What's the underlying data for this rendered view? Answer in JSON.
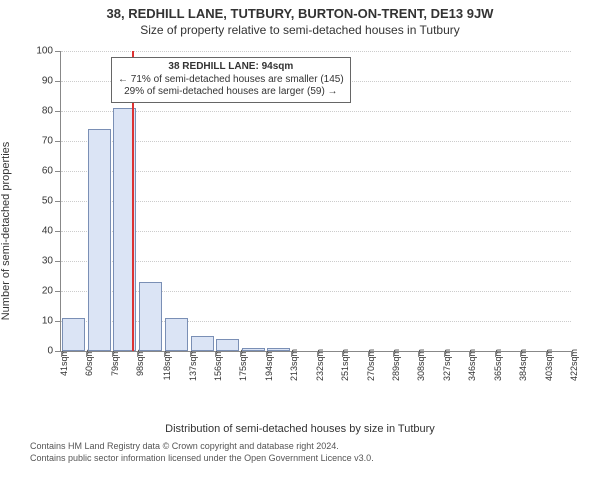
{
  "title": "38, REDHILL LANE, TUTBURY, BURTON-ON-TRENT, DE13 9JW",
  "subtitle": "Size of property relative to semi-detached houses in Tutbury",
  "y_axis_label": "Number of semi-detached properties",
  "x_axis_label": "Distribution of semi-detached houses by size in Tutbury",
  "footer_line1": "Contains HM Land Registry data © Crown copyright and database right 2024.",
  "footer_line2": "Contains public sector information licensed under the Open Government Licence v3.0.",
  "chart": {
    "type": "histogram",
    "ylim": [
      0,
      100
    ],
    "ytick_step": 10,
    "background_color": "#ffffff",
    "grid_color": "#cccccc",
    "axis_color": "#888888",
    "bar_fill": "#dbe4f5",
    "bar_border": "#7a8fb5",
    "bar_width": 0.9,
    "x_categories": [
      "41sqm",
      "60sqm",
      "79sqm",
      "98sqm",
      "118sqm",
      "137sqm",
      "156sqm",
      "175sqm",
      "194sqm",
      "213sqm",
      "232sqm",
      "251sqm",
      "270sqm",
      "289sqm",
      "308sqm",
      "327sqm",
      "346sqm",
      "365sqm",
      "384sqm",
      "403sqm",
      "422sqm"
    ],
    "x_values": [
      41,
      60,
      79,
      98,
      118,
      137,
      156,
      175,
      194,
      213,
      232,
      251,
      270,
      289,
      308,
      327,
      346,
      365,
      384,
      403,
      422
    ],
    "bars": [
      {
        "x": 50.5,
        "y": 11
      },
      {
        "x": 69.5,
        "y": 74
      },
      {
        "x": 88.5,
        "y": 81
      },
      {
        "x": 108,
        "y": 23
      },
      {
        "x": 127.5,
        "y": 11
      },
      {
        "x": 146.5,
        "y": 5
      },
      {
        "x": 165.5,
        "y": 4
      },
      {
        "x": 184.5,
        "y": 1
      },
      {
        "x": 203.5,
        "y": 1
      }
    ],
    "reference_line": {
      "x": 94,
      "color": "#d33"
    },
    "annotation": {
      "line1": "38 REDHILL LANE: 94sqm",
      "line2": "← 71% of semi-detached houses are smaller (145)",
      "line3": "29% of semi-detached houses are larger (59) →",
      "box_border": "#666666",
      "box_bg": "#ffffff",
      "fontsize": 10
    }
  }
}
